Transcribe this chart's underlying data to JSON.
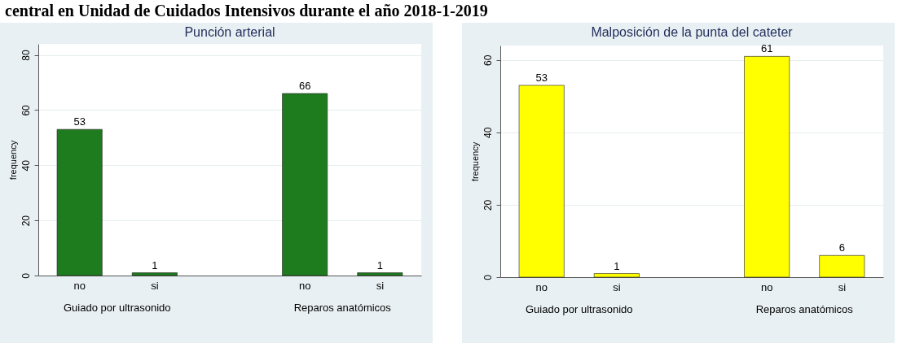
{
  "chart_data": [
    {
      "type": "bar",
      "subtitle": "central en Unidad de Cuidados Intensivos durante el año 2018-1-2019",
      "title": "Punción arterial",
      "ylabel": "frequency",
      "categories": [
        "no",
        "si",
        "no",
        "si"
      ],
      "values": [
        53,
        1,
        66,
        1
      ],
      "color": "#1e7b1e",
      "ylim": [
        0,
        84
      ],
      "yticks": [
        0,
        20,
        40,
        60,
        80
      ],
      "grid": "y",
      "data_labels": true,
      "annotations": [
        "Guiado por ultrasonido",
        "Reparos anatómicos"
      ]
    },
    {
      "type": "bar",
      "title": "Malposición de la punta del cateter",
      "ylabel": "frequency",
      "categories": [
        "no",
        "si",
        "no",
        "si"
      ],
      "values": [
        53,
        1,
        61,
        6
      ],
      "color": "#ffff00",
      "ylim": [
        0,
        64
      ],
      "yticks": [
        0,
        20,
        40,
        60
      ],
      "grid": "y",
      "data_labels": true,
      "annotations": [
        "Guiado por ultrasonido",
        "Reparos anatómicos"
      ]
    }
  ]
}
